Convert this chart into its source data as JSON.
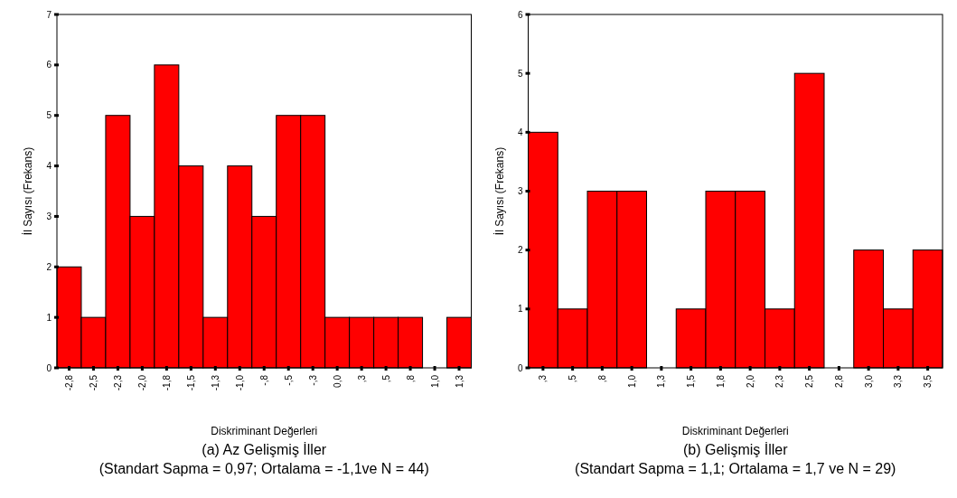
{
  "chart_data": [
    {
      "type": "bar",
      "categories": [
        "-2,8",
        "-2,5",
        "-2,3",
        "-2,0",
        "-1,8",
        "-1,5",
        "-1,3",
        "-1,0",
        "-,8",
        "-,5",
        "-,3",
        "0,0",
        ",3",
        ",5",
        ",8",
        "1,0",
        "1,3"
      ],
      "values": [
        2,
        1,
        5,
        3,
        6,
        4,
        1,
        4,
        3,
        5,
        5,
        1,
        1,
        1,
        1,
        0,
        1
      ],
      "color": "#ff0000",
      "ylim": [
        0,
        7
      ],
      "yticks": [
        0,
        1,
        2,
        3,
        4,
        5,
        6,
        7
      ],
      "xlabel": "Diskriminant Değerleri",
      "ylabel": "İl Sayısı (Frekans)",
      "grid": false,
      "annotations": [
        "(a) Az Gelişmiş İller",
        "(Standart Sapma = 0,97; Ortalama = -1,1ve N = 44)"
      ]
    },
    {
      "type": "bar",
      "categories": [
        ",3",
        ",5",
        ",8",
        "1,0",
        "1,3",
        "1,5",
        "1,8",
        "2,0",
        "2,3",
        "2,5",
        "2,8",
        "3,0",
        "3,3",
        "3,5"
      ],
      "values": [
        4,
        1,
        3,
        3,
        0,
        1,
        3,
        3,
        1,
        5,
        0,
        2,
        1,
        2
      ],
      "color": "#ff0000",
      "ylim": [
        0,
        6
      ],
      "yticks": [
        0,
        1,
        2,
        3,
        4,
        5,
        6
      ],
      "xlabel": "Diskriminant Değerleri",
      "ylabel": "İl Sayısı (Frekans)",
      "grid": false,
      "annotations": [
        "(b) Gelişmiş İller",
        "(Standart Sapma = 1,1; Ortalama = 1,7 ve N = 29)"
      ]
    }
  ]
}
